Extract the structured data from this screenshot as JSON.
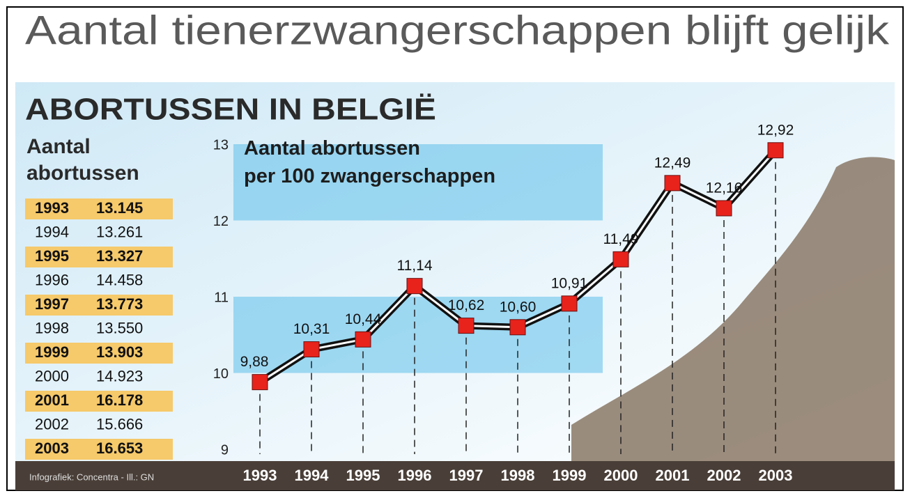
{
  "headline": "Aantal tienerzwangerschappen blijft gelijk",
  "subtitle": "ABORTUSSEN IN BELGIË",
  "table": {
    "header": "Aantal abortussen",
    "rows": [
      [
        "1993",
        "13.145"
      ],
      [
        "1994",
        "13.261"
      ],
      [
        "1995",
        "13.327"
      ],
      [
        "1996",
        "14.458"
      ],
      [
        "1997",
        "13.773"
      ],
      [
        "1998",
        "13.550"
      ],
      [
        "1999",
        "13.903"
      ],
      [
        "2000",
        "14.923"
      ],
      [
        "2001",
        "16.178"
      ],
      [
        "2002",
        "15.666"
      ],
      [
        "2003",
        "16.653"
      ]
    ]
  },
  "credit": "Infografiek: Concentra - Ill.: GN",
  "chart_data": {
    "type": "line",
    "title": "Aantal abortussen per 100 zwangerschappen",
    "categories": [
      "1993",
      "1994",
      "1995",
      "1996",
      "1997",
      "1998",
      "1999",
      "2000",
      "2001",
      "2002",
      "2003"
    ],
    "values": [
      9.88,
      10.31,
      10.44,
      11.14,
      10.62,
      10.6,
      10.91,
      11.49,
      12.49,
      12.16,
      12.92
    ],
    "value_labels": [
      "9,88",
      "10,31",
      "10,44",
      "11,14",
      "10,62",
      "10,60",
      "10,91",
      "11,49",
      "12,49",
      "12,16",
      "12,92"
    ],
    "color": "#e8231c",
    "ylim": [
      9,
      13
    ],
    "yticks": [
      9,
      10,
      11,
      12,
      13
    ]
  }
}
